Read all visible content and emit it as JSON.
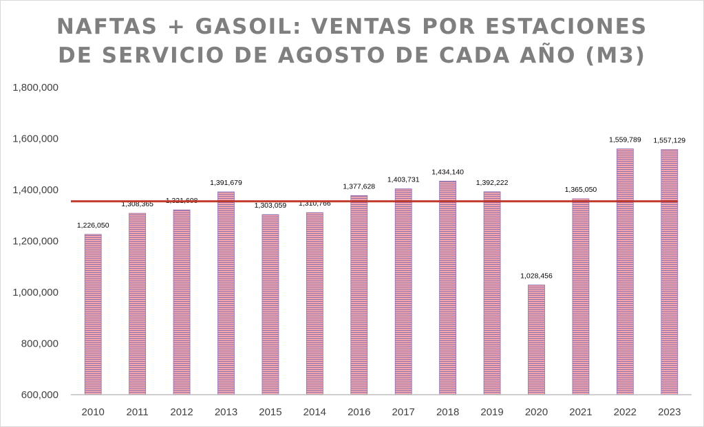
{
  "chart_data": {
    "type": "bar",
    "title_lines": [
      "NAFTAS + GASOIL: VENTAS POR ESTACIONES",
      "DE SERVICIO DE AGOSTO DE CADA AÑO (M3)"
    ],
    "categories": [
      "2010",
      "2011",
      "2012",
      "2013",
      "2015",
      "2014",
      "2016",
      "2017",
      "2018",
      "2019",
      "2020",
      "2021",
      "2022",
      "2023"
    ],
    "values": [
      1226050,
      1308365,
      1321608,
      1391679,
      1303059,
      1310766,
      1377628,
      1403731,
      1434140,
      1392222,
      1028456,
      1365050,
      1559789,
      1557129
    ],
    "value_labels": [
      "1,226,050",
      "1,308,365",
      "1,321,608",
      "1,391,679",
      "1,303,059",
      "1,310,766",
      "1,377,628",
      "1,403,731",
      "1,434,140",
      "1,392,222",
      "1,028,456",
      "1,365,050",
      "1,559,789",
      "1,557,129"
    ],
    "reference_line": {
      "value": 1354990,
      "color": "#c0392b"
    },
    "ylim": [
      600000,
      1800000
    ],
    "yticks": [
      600000,
      800000,
      1000000,
      1200000,
      1400000,
      1600000,
      1800000
    ],
    "ytick_labels": [
      "600,000",
      "800,000",
      "1,000,000",
      "1,200,000",
      "1,400,000",
      "1,600,000",
      "1,800,000"
    ],
    "xlabel": "",
    "ylabel": "",
    "grid": false,
    "legend": "none",
    "colors": {
      "bar_fill": "#f4a6ad",
      "bar_stripe": "#8e6fb0",
      "title": "#7f7f7f",
      "axis": "#bfbfbf"
    }
  }
}
